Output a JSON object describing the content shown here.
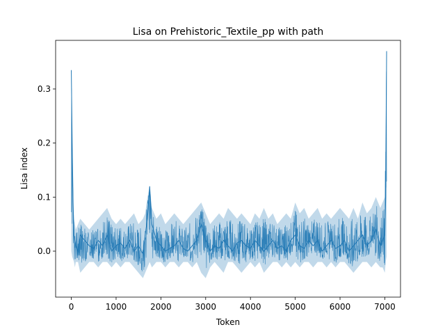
{
  "chart_data": {
    "type": "line",
    "title": "Lisa on Prehistoric_Textile_pp with path",
    "xlabel": "Token",
    "ylabel": "Lisa index",
    "xlim": [
      -350,
      7350
    ],
    "ylim": [
      -0.085,
      0.39
    ],
    "xticks": [
      0,
      1000,
      2000,
      3000,
      4000,
      5000,
      6000,
      7000
    ],
    "xtick_labels": [
      "0",
      "1000",
      "2000",
      "3000",
      "4000",
      "5000",
      "6000",
      "7000"
    ],
    "yticks": [
      0.0,
      0.1,
      0.2,
      0.3
    ],
    "ytick_labels": [
      "0.0",
      "0.1",
      "0.2",
      "0.3"
    ],
    "grid": false,
    "legend": "none",
    "series": [
      {
        "color": "#1f77b4",
        "x": [
          0,
          20,
          40,
          60,
          80,
          100,
          150,
          200,
          300,
          400,
          500,
          600,
          700,
          800,
          900,
          1000,
          1100,
          1200,
          1300,
          1400,
          1500,
          1600,
          1650,
          1700,
          1750,
          1800,
          1900,
          2000,
          2100,
          2200,
          2300,
          2400,
          2500,
          2600,
          2700,
          2800,
          2900,
          3000,
          3100,
          3200,
          3300,
          3400,
          3500,
          3600,
          3700,
          3800,
          3900,
          4000,
          4100,
          4200,
          4300,
          4400,
          4500,
          4600,
          4700,
          4800,
          4900,
          5000,
          5100,
          5200,
          5300,
          5400,
          5500,
          5600,
          5700,
          5800,
          5900,
          6000,
          6100,
          6200,
          6300,
          6400,
          6500,
          6600,
          6700,
          6800,
          6900,
          6950,
          7000,
          7020,
          7040
        ],
        "y": [
          0.335,
          0.2,
          0.09,
          0.03,
          0.02,
          0.01,
          0.0,
          0.03,
          0.02,
          0.01,
          0.005,
          0.02,
          0.01,
          0.03,
          0.0,
          0.01,
          0.015,
          0.005,
          0.02,
          0.0,
          0.01,
          -0.005,
          0.03,
          0.06,
          0.12,
          0.05,
          0.02,
          0.01,
          0.0,
          0.005,
          0.01,
          0.02,
          0.005,
          0.0,
          0.01,
          0.02,
          0.05,
          0.02,
          0.0,
          0.01,
          0.005,
          0.02,
          0.01,
          0.0,
          0.015,
          0.02,
          0.01,
          0.005,
          0.02,
          0.01,
          0.0,
          0.01,
          0.02,
          0.005,
          0.01,
          0.0,
          0.02,
          0.03,
          0.01,
          0.005,
          0.02,
          0.01,
          0.02,
          0.0,
          0.01,
          0.02,
          0.005,
          0.01,
          0.02,
          0.0,
          0.01,
          0.02,
          0.03,
          0.01,
          0.02,
          0.04,
          0.01,
          0.02,
          0.03,
          0.1,
          0.37
        ],
        "band_low": [
          0.0,
          -0.01,
          -0.015,
          -0.02,
          -0.03,
          -0.02,
          -0.02,
          -0.04,
          -0.03,
          -0.02,
          -0.02,
          -0.03,
          -0.02,
          -0.02,
          -0.03,
          -0.02,
          -0.03,
          -0.02,
          -0.02,
          -0.03,
          -0.04,
          -0.05,
          -0.04,
          -0.03,
          -0.02,
          -0.03,
          -0.02,
          -0.02,
          -0.03,
          -0.02,
          -0.02,
          -0.03,
          -0.02,
          -0.02,
          -0.03,
          -0.02,
          -0.04,
          -0.05,
          -0.03,
          -0.02,
          -0.03,
          -0.04,
          -0.02,
          -0.02,
          -0.03,
          -0.04,
          -0.03,
          -0.02,
          -0.03,
          -0.02,
          -0.04,
          -0.03,
          -0.02,
          -0.02,
          -0.03,
          -0.02,
          -0.03,
          -0.02,
          -0.03,
          -0.02,
          -0.02,
          -0.03,
          -0.02,
          -0.02,
          -0.03,
          -0.02,
          -0.03,
          -0.02,
          -0.02,
          -0.03,
          -0.04,
          -0.03,
          -0.02,
          -0.02,
          -0.03,
          -0.02,
          -0.03,
          -0.03,
          -0.04,
          -0.02,
          -0.01
        ],
        "band_high": [
          0.335,
          0.2,
          0.09,
          0.06,
          0.05,
          0.04,
          0.05,
          0.06,
          0.05,
          0.04,
          0.05,
          0.06,
          0.07,
          0.08,
          0.06,
          0.05,
          0.06,
          0.05,
          0.06,
          0.07,
          0.05,
          0.06,
          0.07,
          0.1,
          0.12,
          0.08,
          0.06,
          0.07,
          0.05,
          0.06,
          0.07,
          0.06,
          0.05,
          0.06,
          0.07,
          0.08,
          0.09,
          0.07,
          0.05,
          0.06,
          0.07,
          0.06,
          0.08,
          0.07,
          0.06,
          0.07,
          0.06,
          0.05,
          0.07,
          0.06,
          0.08,
          0.06,
          0.07,
          0.05,
          0.06,
          0.07,
          0.06,
          0.09,
          0.07,
          0.08,
          0.06,
          0.07,
          0.08,
          0.06,
          0.07,
          0.06,
          0.07,
          0.08,
          0.07,
          0.06,
          0.08,
          0.06,
          0.09,
          0.07,
          0.08,
          0.1,
          0.08,
          0.09,
          0.1,
          0.26,
          0.37
        ]
      }
    ]
  }
}
